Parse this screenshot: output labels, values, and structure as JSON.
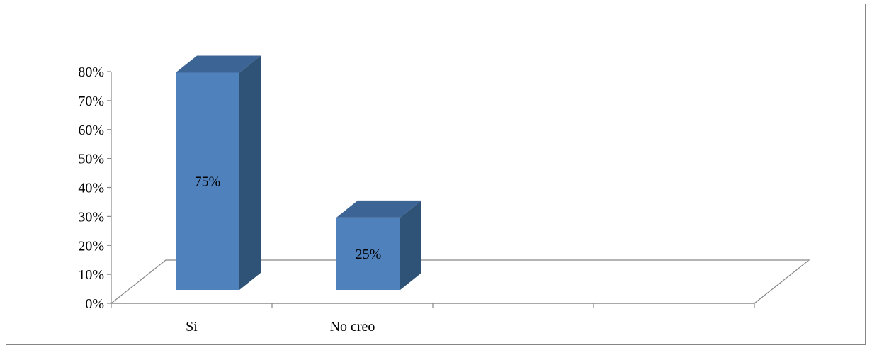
{
  "chart_data": {
    "type": "bar",
    "style": "3d-column",
    "title": "",
    "xlabel": "",
    "ylabel": "",
    "categories": [
      "Si",
      "No creo",
      "",
      ""
    ],
    "values": [
      0.75,
      0.25,
      null,
      null
    ],
    "data_labels": [
      "75%",
      "25%",
      "",
      ""
    ],
    "ylim": [
      0,
      0.8
    ],
    "yticks": [
      0,
      0.1,
      0.2,
      0.3,
      0.4,
      0.5,
      0.6,
      0.7,
      0.8
    ],
    "ytick_labels": [
      "0%",
      "10%",
      "20%",
      "30%",
      "40%",
      "50%",
      "60%",
      "70%",
      "80%"
    ],
    "grid": false,
    "legend": "none",
    "colors": {
      "bar_front": "#4f81bd",
      "bar_side": "#2f5277",
      "bar_top": "#3c6494",
      "axis": "#868686"
    }
  }
}
